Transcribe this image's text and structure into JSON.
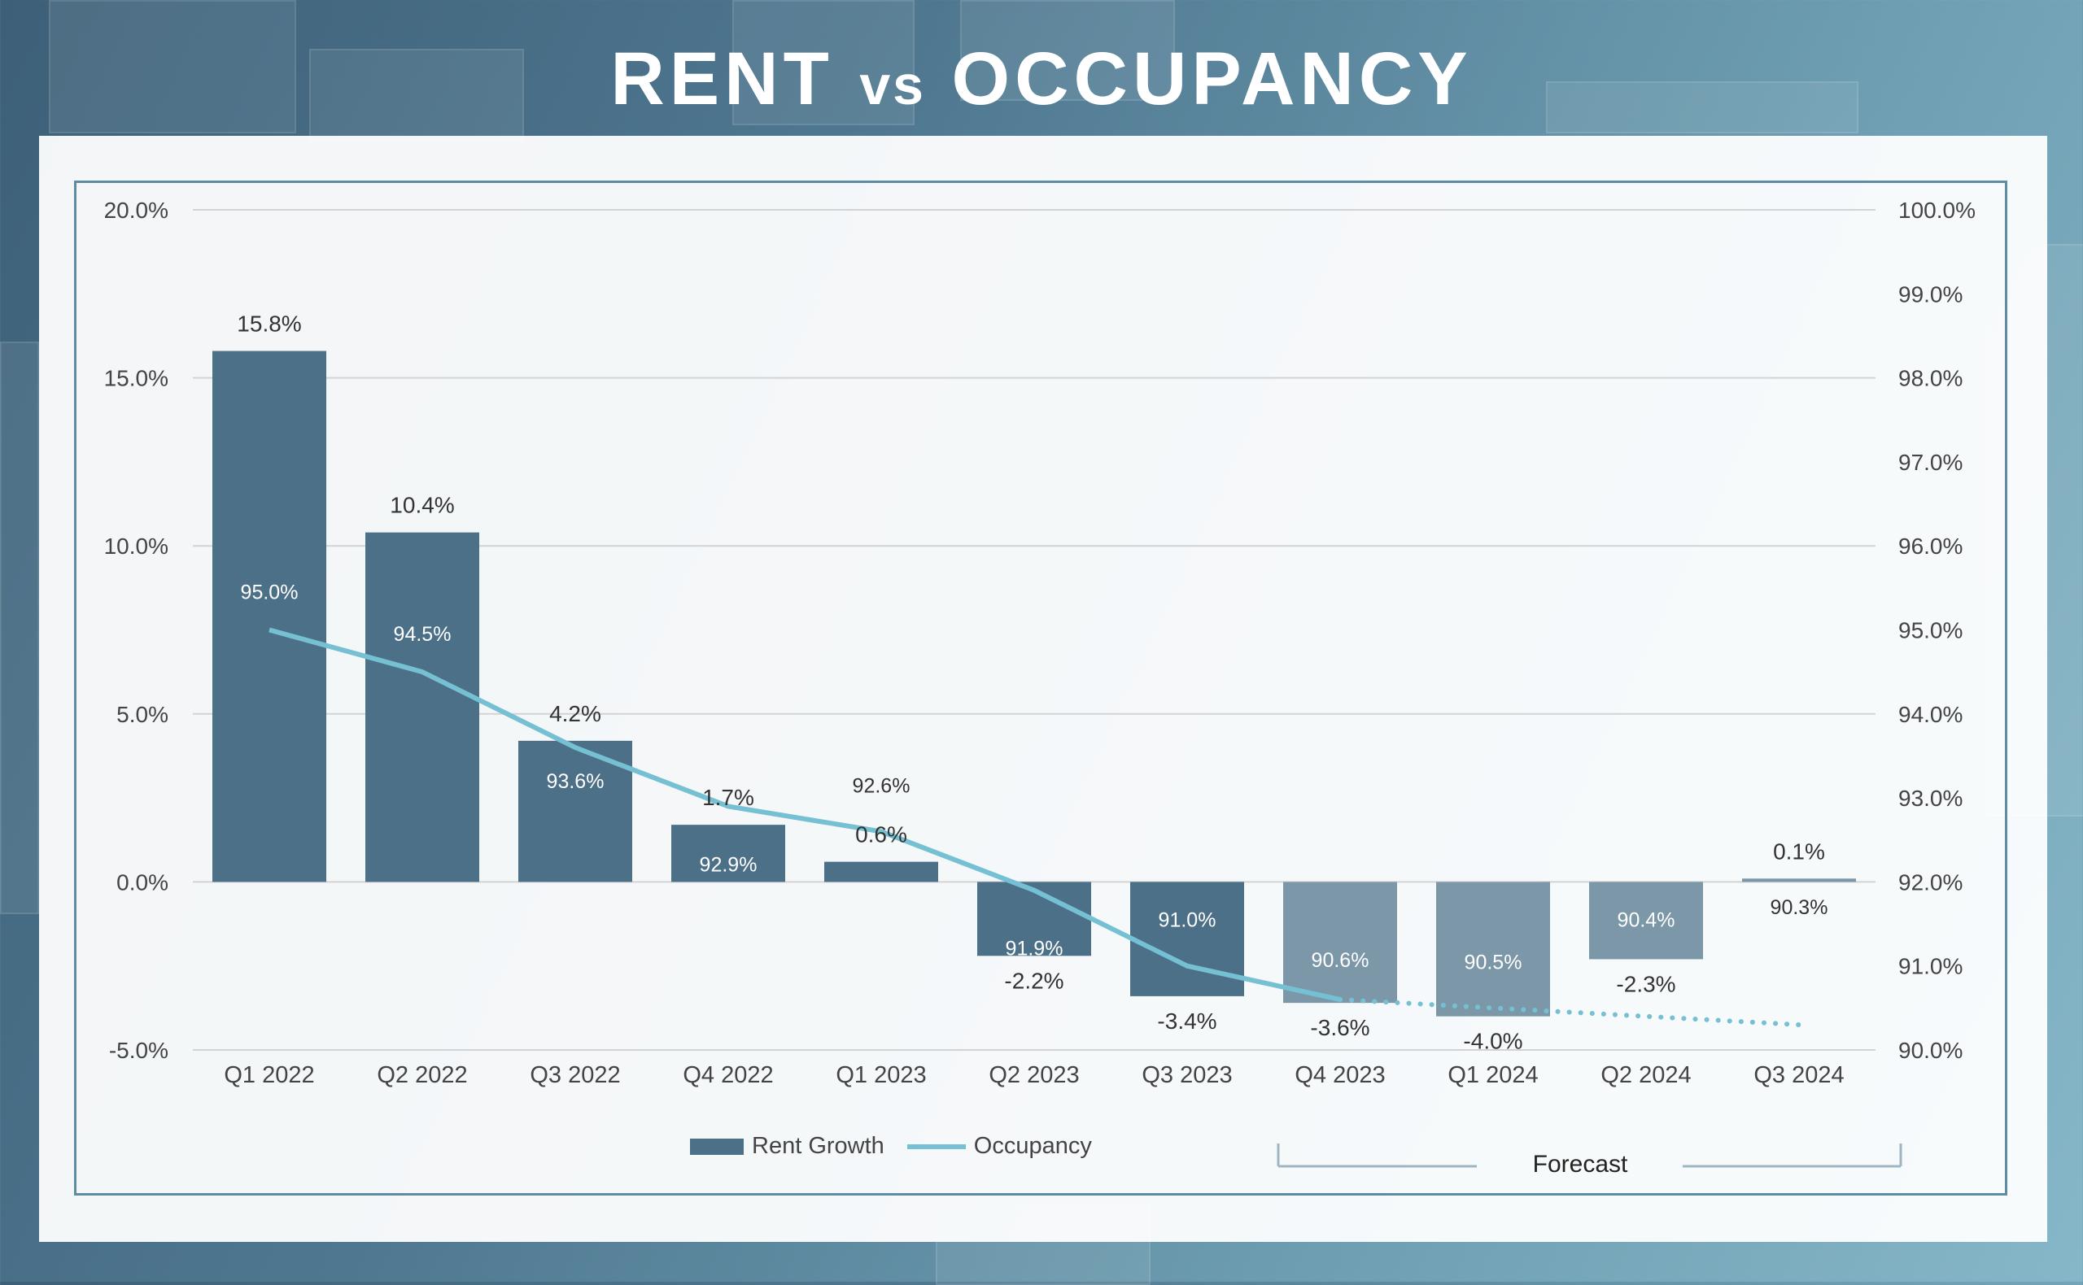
{
  "title": {
    "main_left": "RENT",
    "vs": "vs",
    "main_right": "OCCUPANCY"
  },
  "colors": {
    "bar_actual": "#4d7089",
    "bar_forecast": "#7c98a8",
    "line": "#75c0d3",
    "grid": "#d3d3d3",
    "text": "#444444"
  },
  "legend": {
    "rent_growth": "Rent Growth",
    "occupancy": "Occupancy"
  },
  "forecast": {
    "label": "Forecast"
  },
  "chart_data": {
    "type": "bar+line",
    "title": "RENT vs OCCUPANCY",
    "categories": [
      "Q1 2022",
      "Q2 2022",
      "Q3 2022",
      "Q4 2022",
      "Q1 2023",
      "Q2 2023",
      "Q3 2023",
      "Q4 2023",
      "Q1 2024",
      "Q2 2024",
      "Q3 2024"
    ],
    "series": [
      {
        "name": "Rent Growth",
        "type": "bar",
        "axis": "left",
        "values": [
          15.8,
          10.4,
          4.2,
          1.7,
          0.6,
          -2.2,
          -3.4,
          -3.6,
          -4.0,
          -2.3,
          0.1
        ],
        "labels": [
          "15.8%",
          "10.4%",
          "4.2%",
          "1.7%",
          "0.6%",
          "-2.2%",
          "-3.4%",
          "-3.6%",
          "-4.0%",
          "-2.3%",
          "0.1%"
        ]
      },
      {
        "name": "Occupancy",
        "type": "line",
        "axis": "right",
        "values": [
          95.0,
          94.5,
          93.6,
          92.9,
          92.6,
          91.9,
          91.0,
          90.6,
          90.5,
          90.4,
          90.3
        ],
        "labels": [
          "95.0%",
          "94.5%",
          "93.6%",
          "92.9%",
          "92.6%",
          "91.9%",
          "91.0%",
          "90.6%",
          "90.5%",
          "90.4%",
          "90.3%"
        ]
      }
    ],
    "forecast_start_index": 7,
    "y_left": {
      "min": -5,
      "max": 20,
      "ticks": [
        "20.0%",
        "15.0%",
        "10.0%",
        "5.0%",
        "0.0%",
        "-5.0%"
      ]
    },
    "y_right": {
      "min": 90,
      "max": 100,
      "ticks": [
        "100.0%",
        "99.0%",
        "98.0%",
        "97.0%",
        "96.0%",
        "95.0%",
        "94.0%",
        "93.0%",
        "92.0%",
        "91.0%",
        "90.0%"
      ]
    },
    "legend_position": "bottom-center",
    "grid": true
  }
}
